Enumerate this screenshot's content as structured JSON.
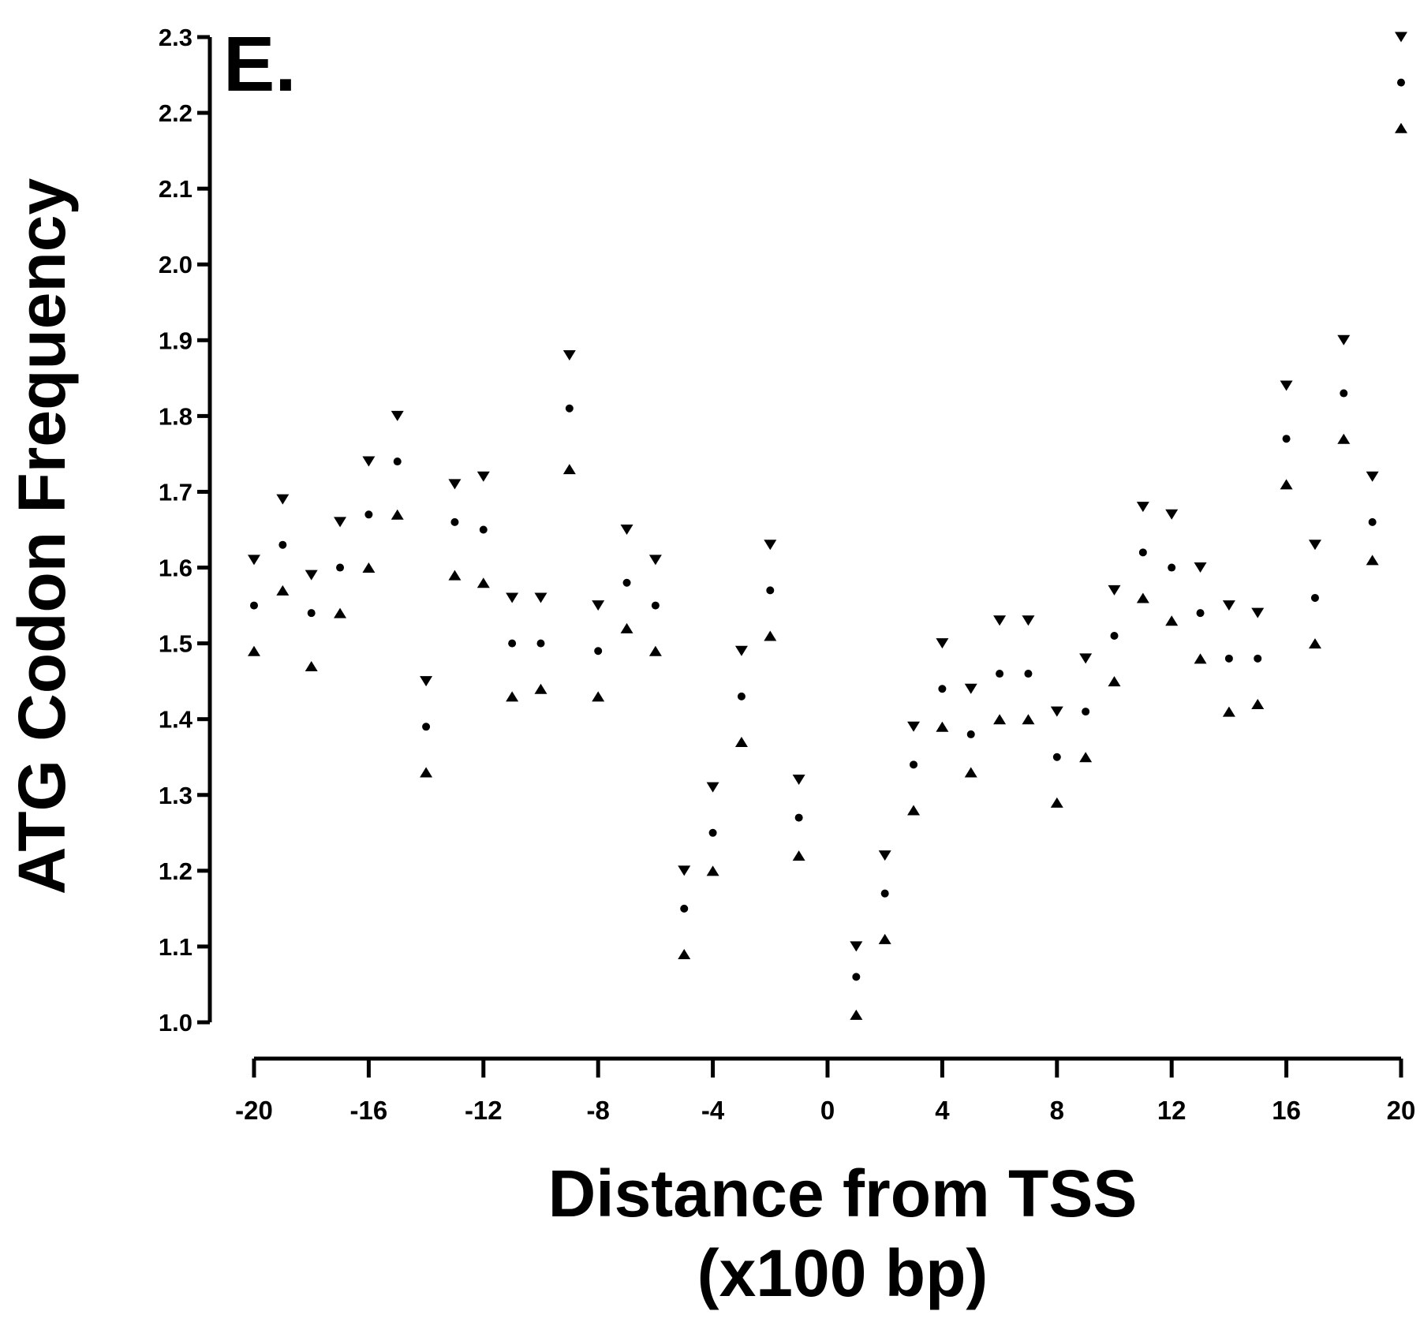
{
  "chart_data": {
    "type": "scatter",
    "panel_label": "E.",
    "xlabel_line1": "Distance from TSS",
    "xlabel_line2": "(x100 bp)",
    "ylabel": "ATG Codon Frequency",
    "xlim": [
      -20,
      20
    ],
    "ylim": [
      1.0,
      2.3
    ],
    "xticks": [
      -20,
      -16,
      -12,
      -8,
      -4,
      0,
      4,
      8,
      12,
      16,
      20
    ],
    "yticks": [
      1.0,
      1.1,
      1.2,
      1.3,
      1.4,
      1.5,
      1.6,
      1.7,
      1.8,
      1.9,
      2.0,
      2.1,
      2.2,
      2.3
    ],
    "grid": false,
    "markers": {
      "mean": "dot",
      "upper": "triangle-down",
      "lower": "triangle-up"
    },
    "x": [
      -20,
      -19,
      -18,
      -17,
      -16,
      -15,
      -14,
      -13,
      -12,
      -11,
      -10,
      -9,
      -8,
      -7,
      -6,
      -5,
      -4,
      -3,
      -2,
      -1,
      1,
      2,
      3,
      4,
      5,
      6,
      7,
      8,
      9,
      10,
      11,
      12,
      13,
      14,
      15,
      17,
      18,
      19,
      20,
      16
    ],
    "series": [
      {
        "values": [
          1.55,
          1.63,
          1.54,
          1.6,
          1.67,
          1.74,
          1.39,
          1.66,
          1.65,
          1.5,
          1.5,
          1.81,
          1.49,
          1.58,
          1.55,
          1.15,
          1.25,
          1.43,
          1.57,
          1.27,
          1.06,
          1.17,
          1.34,
          1.44,
          1.38,
          1.46,
          1.46,
          1.35,
          1.41,
          1.51,
          1.62,
          1.6,
          1.54,
          1.48,
          1.48,
          1.56,
          1.83,
          1.66,
          2.24,
          1.77
        ]
      },
      {
        "values": [
          1.61,
          1.69,
          1.59,
          1.66,
          1.74,
          1.8,
          1.45,
          1.71,
          1.72,
          1.56,
          1.56,
          1.88,
          1.55,
          1.65,
          1.61,
          1.2,
          1.31,
          1.49,
          1.63,
          1.32,
          1.1,
          1.22,
          1.39,
          1.5,
          1.44,
          1.53,
          1.53,
          1.41,
          1.48,
          1.57,
          1.68,
          1.67,
          1.6,
          1.55,
          1.54,
          1.63,
          1.9,
          1.72,
          2.3,
          1.84
        ]
      },
      {
        "values": [
          1.49,
          1.57,
          1.47,
          1.54,
          1.6,
          1.67,
          1.33,
          1.59,
          1.58,
          1.43,
          1.44,
          1.73,
          1.43,
          1.52,
          1.49,
          1.09,
          1.2,
          1.37,
          1.51,
          1.22,
          1.01,
          1.11,
          1.28,
          1.39,
          1.33,
          1.4,
          1.4,
          1.29,
          1.35,
          1.45,
          1.56,
          1.53,
          1.48,
          1.41,
          1.42,
          1.5,
          1.77,
          1.61,
          2.18,
          1.71
        ]
      }
    ]
  }
}
